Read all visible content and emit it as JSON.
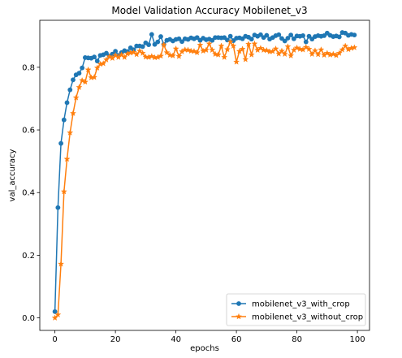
{
  "chart_data": {
    "type": "line",
    "title": "Model Validation Accuracy Mobilenet_v3",
    "xlabel": "epochs",
    "ylabel": "val_accuracy",
    "xlim": [
      -5,
      104
    ],
    "ylim": [
      -0.04,
      0.95
    ],
    "xticks": [
      0,
      20,
      40,
      60,
      80,
      100
    ],
    "yticks": [
      0.0,
      0.2,
      0.4,
      0.6,
      0.8
    ],
    "grid": false,
    "legend_position": "lower-right",
    "series": [
      {
        "name": "mobilenet_v3_with_crop",
        "color": "#1f77b4",
        "marker": "circle",
        "values": [
          0.02,
          0.352,
          0.557,
          0.632,
          0.687,
          0.728,
          0.76,
          0.776,
          0.781,
          0.798,
          0.831,
          0.83,
          0.829,
          0.833,
          0.82,
          0.838,
          0.84,
          0.845,
          0.836,
          0.842,
          0.851,
          0.838,
          0.847,
          0.853,
          0.85,
          0.862,
          0.856,
          0.868,
          0.868,
          0.866,
          0.878,
          0.872,
          0.905,
          0.873,
          0.881,
          0.898,
          0.873,
          0.886,
          0.889,
          0.884,
          0.889,
          0.891,
          0.882,
          0.891,
          0.889,
          0.894,
          0.891,
          0.895,
          0.886,
          0.893,
          0.888,
          0.89,
          0.886,
          0.895,
          0.895,
          0.894,
          0.895,
          0.887,
          0.899,
          0.885,
          0.893,
          0.894,
          0.891,
          0.899,
          0.896,
          0.89,
          0.903,
          0.899,
          0.904,
          0.895,
          0.902,
          0.89,
          0.895,
          0.901,
          0.904,
          0.892,
          0.884,
          0.893,
          0.903,
          0.891,
          0.9,
          0.899,
          0.901,
          0.881,
          0.899,
          0.89,
          0.898,
          0.901,
          0.899,
          0.901,
          0.909,
          0.902,
          0.898,
          0.9,
          0.897,
          0.911,
          0.909,
          0.902,
          0.905,
          0.903
        ]
      },
      {
        "name": "mobilenet_v3_without_crop",
        "color": "#ff7f0e",
        "marker": "star",
        "values": [
          0.0,
          0.01,
          0.172,
          0.403,
          0.507,
          0.591,
          0.653,
          0.703,
          0.736,
          0.758,
          0.753,
          0.792,
          0.767,
          0.768,
          0.798,
          0.81,
          0.812,
          0.824,
          0.834,
          0.829,
          0.838,
          0.832,
          0.84,
          0.832,
          0.843,
          0.846,
          0.848,
          0.841,
          0.852,
          0.845,
          0.833,
          0.832,
          0.835,
          0.831,
          0.832,
          0.836,
          0.872,
          0.847,
          0.839,
          0.837,
          0.859,
          0.835,
          0.85,
          0.856,
          0.855,
          0.852,
          0.851,
          0.847,
          0.871,
          0.852,
          0.855,
          0.875,
          0.855,
          0.842,
          0.84,
          0.868,
          0.832,
          0.857,
          0.881,
          0.868,
          0.817,
          0.851,
          0.858,
          0.825,
          0.874,
          0.84,
          0.875,
          0.855,
          0.861,
          0.855,
          0.854,
          0.85,
          0.851,
          0.859,
          0.843,
          0.852,
          0.842,
          0.866,
          0.837,
          0.855,
          0.862,
          0.858,
          0.856,
          0.864,
          0.858,
          0.842,
          0.853,
          0.841,
          0.856,
          0.839,
          0.845,
          0.84,
          0.842,
          0.838,
          0.845,
          0.856,
          0.868,
          0.857,
          0.861,
          0.863
        ]
      }
    ]
  }
}
